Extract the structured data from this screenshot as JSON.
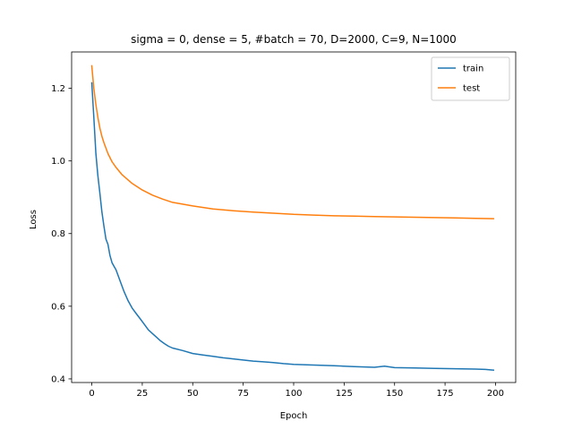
{
  "chart_data": {
    "type": "line",
    "title": "sigma = 0, dense = 5, #batch = 70, D=2000, C=9, N=1000",
    "xlabel": "Epoch",
    "ylabel": "Loss",
    "xlim": [
      -10,
      210
    ],
    "ylim": [
      0.39,
      1.3
    ],
    "xticks": [
      0,
      25,
      50,
      75,
      100,
      125,
      150,
      175,
      200
    ],
    "yticks": [
      0.4,
      0.6,
      0.8,
      1.0,
      1.2
    ],
    "xtick_labels": [
      "0",
      "25",
      "50",
      "75",
      "100",
      "125",
      "150",
      "175",
      "200"
    ],
    "ytick_labels": [
      "0.4",
      "0.6",
      "0.8",
      "1.0",
      "1.2"
    ],
    "grid": false,
    "legend_position": "top-right",
    "series": [
      {
        "name": "train",
        "color": "#1f77b4",
        "x": [
          0,
          1,
          2,
          3,
          4,
          5,
          6,
          7,
          8,
          9,
          10,
          12,
          14,
          16,
          18,
          20,
          22,
          24,
          26,
          28,
          30,
          32,
          34,
          36,
          38,
          40,
          45,
          50,
          55,
          60,
          65,
          70,
          75,
          80,
          85,
          90,
          95,
          100,
          110,
          120,
          130,
          140,
          145,
          150,
          160,
          170,
          180,
          190,
          195,
          199
        ],
        "y": [
          1.215,
          1.12,
          1.02,
          0.96,
          0.91,
          0.86,
          0.82,
          0.785,
          0.77,
          0.74,
          0.72,
          0.7,
          0.67,
          0.64,
          0.615,
          0.595,
          0.58,
          0.565,
          0.55,
          0.535,
          0.525,
          0.515,
          0.505,
          0.497,
          0.49,
          0.485,
          0.478,
          0.47,
          0.466,
          0.462,
          0.458,
          0.455,
          0.452,
          0.449,
          0.447,
          0.445,
          0.442,
          0.44,
          0.438,
          0.436,
          0.434,
          0.432,
          0.435,
          0.431,
          0.43,
          0.429,
          0.428,
          0.427,
          0.426,
          0.424
        ]
      },
      {
        "name": "test",
        "color": "#ff7f0e",
        "x": [
          0,
          1,
          2,
          3,
          4,
          5,
          6,
          8,
          10,
          12,
          15,
          20,
          25,
          30,
          35,
          40,
          50,
          60,
          70,
          80,
          90,
          100,
          110,
          120,
          130,
          140,
          150,
          160,
          170,
          180,
          190,
          199
        ],
        "y": [
          1.262,
          1.2,
          1.155,
          1.12,
          1.09,
          1.068,
          1.05,
          1.02,
          0.998,
          0.982,
          0.962,
          0.938,
          0.92,
          0.906,
          0.895,
          0.886,
          0.876,
          0.868,
          0.863,
          0.859,
          0.856,
          0.853,
          0.851,
          0.849,
          0.848,
          0.847,
          0.846,
          0.845,
          0.844,
          0.843,
          0.842,
          0.841
        ]
      }
    ]
  }
}
